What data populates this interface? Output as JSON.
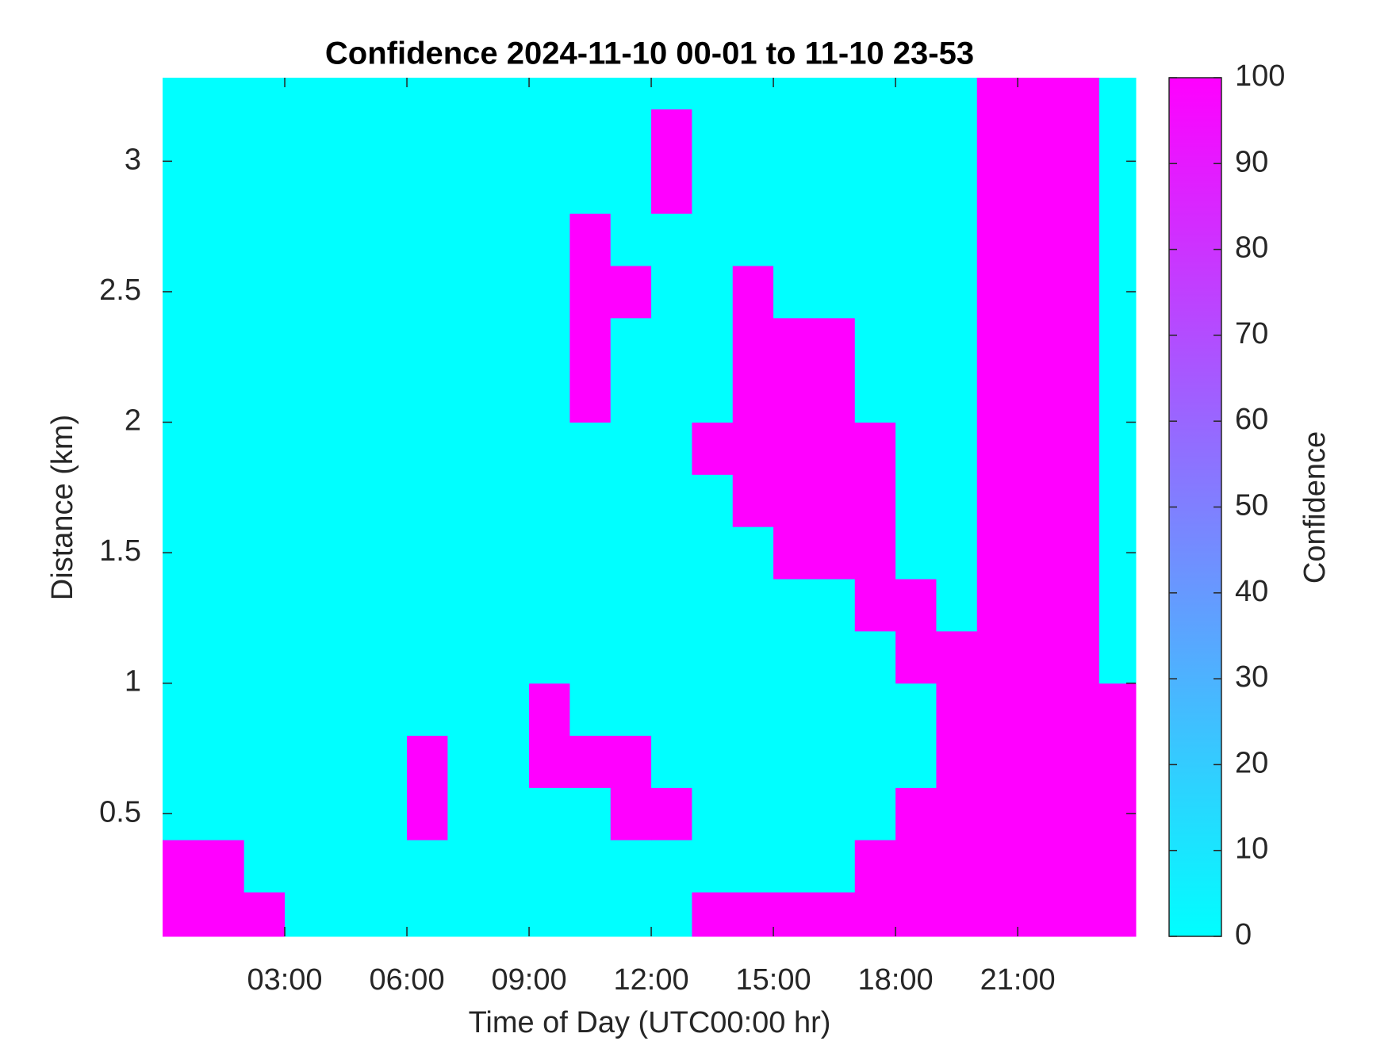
{
  "chart_data": {
    "type": "heatmap",
    "title": "Confidence 2024-11-10 00-01 to 11-10 23-53",
    "x_label": "Time of Day (UTC00:00 hr)",
    "y_label": "Distance (km)",
    "colorbar_label": "Confidence",
    "colormap": "cool",
    "clim": [
      0,
      100
    ],
    "cticks": [
      0,
      10,
      20,
      30,
      40,
      50,
      60,
      70,
      80,
      90,
      100
    ],
    "xlim": [
      0,
      23.9
    ],
    "xticks": [
      {
        "value": 3,
        "label": "03:00"
      },
      {
        "value": 6,
        "label": "06:00"
      },
      {
        "value": 9,
        "label": "09:00"
      },
      {
        "value": 12,
        "label": "12:00"
      },
      {
        "value": 15,
        "label": "15:00"
      },
      {
        "value": 18,
        "label": "18:00"
      },
      {
        "value": 21,
        "label": "21:00"
      }
    ],
    "ylim": [
      0.03,
      3.32
    ],
    "yticks": [
      0.5,
      1,
      1.5,
      2,
      2.5,
      3
    ],
    "x": [
      0.5,
      1.5,
      2.5,
      3.5,
      4.5,
      5.5,
      6.5,
      7.5,
      8.5,
      9.5,
      10.5,
      11.5,
      12.5,
      13.5,
      14.5,
      15.5,
      16.5,
      17.5,
      18.5,
      19.5,
      20.5,
      21.5,
      22.5,
      23.5
    ],
    "y": [
      0.1,
      0.3,
      0.5,
      0.7,
      0.9,
      1.1,
      1.3,
      1.5,
      1.7,
      1.9,
      2.1,
      2.3,
      2.5,
      2.7,
      2.9,
      3.1,
      3.3
    ],
    "z": [
      [
        100,
        100,
        100,
        0,
        0,
        0,
        0,
        0,
        0,
        0,
        0,
        0,
        0,
        100,
        100,
        100,
        100,
        100,
        100,
        100,
        100,
        100,
        100,
        100
      ],
      [
        100,
        100,
        0,
        0,
        0,
        0,
        0,
        0,
        0,
        0,
        0,
        0,
        0,
        0,
        0,
        0,
        0,
        100,
        100,
        100,
        100,
        100,
        100,
        100
      ],
      [
        0,
        0,
        0,
        0,
        0,
        0,
        100,
        0,
        0,
        0,
        0,
        100,
        100,
        0,
        0,
        0,
        0,
        0,
        100,
        100,
        100,
        100,
        100,
        100
      ],
      [
        0,
        0,
        0,
        0,
        0,
        0,
        100,
        0,
        0,
        100,
        100,
        100,
        0,
        0,
        0,
        0,
        0,
        0,
        0,
        100,
        100,
        100,
        100,
        100
      ],
      [
        0,
        0,
        0,
        0,
        0,
        0,
        0,
        0,
        0,
        100,
        0,
        0,
        0,
        0,
        0,
        0,
        0,
        0,
        0,
        100,
        100,
        100,
        100,
        100
      ],
      [
        0,
        0,
        0,
        0,
        0,
        0,
        0,
        0,
        0,
        0,
        0,
        0,
        0,
        0,
        0,
        0,
        0,
        0,
        100,
        100,
        100,
        100,
        100,
        0
      ],
      [
        0,
        0,
        0,
        0,
        0,
        0,
        0,
        0,
        0,
        0,
        0,
        0,
        0,
        0,
        0,
        0,
        0,
        100,
        100,
        0,
        100,
        100,
        100,
        0
      ],
      [
        0,
        0,
        0,
        0,
        0,
        0,
        0,
        0,
        0,
        0,
        0,
        0,
        0,
        0,
        0,
        100,
        100,
        100,
        0,
        0,
        100,
        100,
        100,
        0
      ],
      [
        0,
        0,
        0,
        0,
        0,
        0,
        0,
        0,
        0,
        0,
        0,
        0,
        0,
        0,
        100,
        100,
        100,
        100,
        0,
        0,
        100,
        100,
        100,
        0
      ],
      [
        0,
        0,
        0,
        0,
        0,
        0,
        0,
        0,
        0,
        0,
        0,
        0,
        0,
        100,
        100,
        100,
        100,
        100,
        0,
        0,
        100,
        100,
        100,
        0
      ],
      [
        0,
        0,
        0,
        0,
        0,
        0,
        0,
        0,
        0,
        0,
        100,
        0,
        0,
        0,
        100,
        100,
        100,
        0,
        0,
        0,
        100,
        100,
        100,
        0
      ],
      [
        0,
        0,
        0,
        0,
        0,
        0,
        0,
        0,
        0,
        0,
        100,
        0,
        0,
        0,
        100,
        100,
        100,
        0,
        0,
        0,
        100,
        100,
        100,
        0
      ],
      [
        0,
        0,
        0,
        0,
        0,
        0,
        0,
        0,
        0,
        0,
        100,
        100,
        0,
        0,
        100,
        0,
        0,
        0,
        0,
        0,
        100,
        100,
        100,
        0
      ],
      [
        0,
        0,
        0,
        0,
        0,
        0,
        0,
        0,
        0,
        0,
        100,
        0,
        0,
        0,
        0,
        0,
        0,
        0,
        0,
        0,
        100,
        100,
        100,
        0
      ],
      [
        0,
        0,
        0,
        0,
        0,
        0,
        0,
        0,
        0,
        0,
        0,
        0,
        100,
        0,
        0,
        0,
        0,
        0,
        0,
        0,
        100,
        100,
        100,
        0
      ],
      [
        0,
        0,
        0,
        0,
        0,
        0,
        0,
        0,
        0,
        0,
        0,
        0,
        100,
        0,
        0,
        0,
        0,
        0,
        0,
        0,
        100,
        100,
        100,
        0
      ],
      [
        0,
        0,
        0,
        0,
        0,
        0,
        0,
        0,
        0,
        0,
        0,
        0,
        0,
        0,
        0,
        0,
        0,
        0,
        0,
        0,
        100,
        100,
        100,
        0
      ]
    ]
  }
}
